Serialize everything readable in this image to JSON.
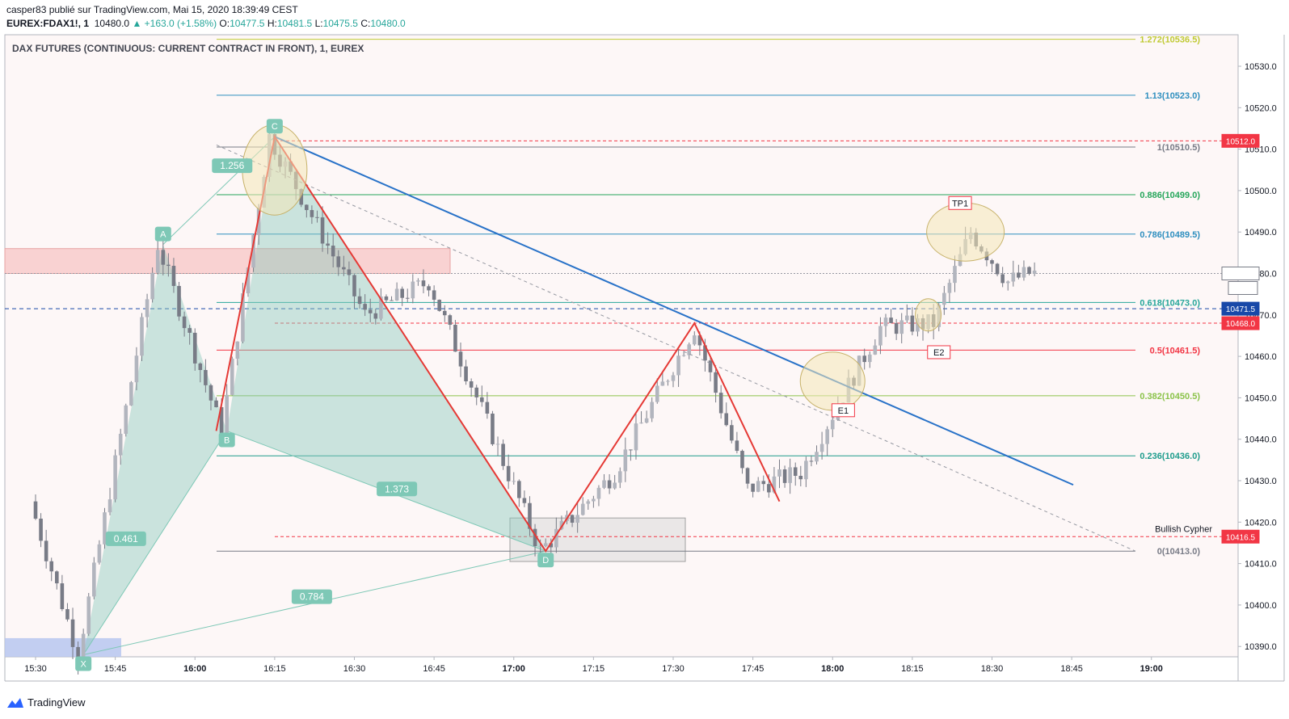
{
  "header": {
    "line1": "casper83 publié sur TradingView.com, Mai 15, 2020 18:39:49 CEST",
    "symbol": "EUREX:FDAX1!, 1",
    "last": "10480.0",
    "change": "+163.0 (+1.58%)",
    "o_label": "O:",
    "o_value": "10477.5",
    "h_label": "H:",
    "h_value": "10481.5",
    "l_label": "L:",
    "l_value": "10475.5",
    "c_label": "C:",
    "c_value": "10480.0"
  },
  "footer": {
    "brand": "TradingView"
  },
  "colors": {
    "up_text": "#26a69a",
    "candle": "#787b86",
    "harmonic_fill": "#8cc9bc",
    "harmonic_point": "#7ec8b6",
    "trendline": "#2872c8",
    "zigzag": "#e53935",
    "supply_zone": "#f7c6c6",
    "demand_zone": "#b7c7f0",
    "ellipse": "#f4e7b8",
    "price_tag_red": "#f23645",
    "price_tag_blue": "#1848a8"
  },
  "chart_data": {
    "type": "candlestick",
    "title": "DAX FUTURES (CONTINUOUS: CURRENT CONTRACT IN FRONT), 1, EUREX",
    "ylim": [
      10387,
      10538
    ],
    "y_ticks": [
      "10530.0",
      "10520.0",
      "10510.0",
      "10500.0",
      "10490.0",
      "10480.0",
      "10470.0",
      "10460.0",
      "10450.0",
      "10440.0",
      "10430.0",
      "10420.0",
      "10410.0",
      "10400.0",
      "10390.0"
    ],
    "x_ticks": [
      "15:30",
      "15:45",
      "16:00",
      "16:15",
      "16:30",
      "16:45",
      "17:00",
      "17:15",
      "17:30",
      "17:45",
      "18:00",
      "18:15",
      "18:30",
      "18:45",
      "19:00"
    ],
    "fib_levels": [
      {
        "level": 1.272,
        "price": 10536.5,
        "label": "1.272(10536.5)",
        "color": "#c0ca33"
      },
      {
        "level": 1.13,
        "price": 10523.0,
        "label": "1.13(10523.0)",
        "color": "#2f8fbf"
      },
      {
        "level": 1,
        "price": 10510.5,
        "label": "1(10510.5)",
        "color": "#787b86"
      },
      {
        "level": 0.886,
        "price": 10499.0,
        "label": "0.886(10499.0)",
        "color": "#26a65b"
      },
      {
        "level": 0.786,
        "price": 10489.5,
        "label": "0.786(10489.5)",
        "color": "#2f8fbf"
      },
      {
        "level": 0.618,
        "price": 10473.0,
        "label": "0.618(10473.0)",
        "color": "#26a69a"
      },
      {
        "level": 0.5,
        "price": 10461.5,
        "label": "0.5(10461.5)",
        "color": "#f23645"
      },
      {
        "level": 0.382,
        "price": 10450.5,
        "label": "0.382(10450.5)",
        "color": "#8bc34a"
      },
      {
        "level": 0.236,
        "price": 10436.0,
        "label": "0.236(10436.0)",
        "color": "#1e9c8c"
      },
      {
        "level": 0,
        "price": 10413.0,
        "label": "0(10413.0)",
        "color": "#787b86"
      }
    ],
    "price_tags": [
      {
        "price": 10512.0,
        "label": "10512.0",
        "kind": "red"
      },
      {
        "price": 10480.0,
        "label": "10480.0",
        "kind": "last"
      },
      {
        "price": 10471.5,
        "label": "10471.5",
        "kind": "blue"
      },
      {
        "price": 10468.0,
        "label": "10468.0",
        "kind": "red"
      },
      {
        "price": 10416.5,
        "label": "10416.5",
        "kind": "red"
      }
    ],
    "countdown": "00:15",
    "pattern_name": "Bullish Cypher",
    "pattern_points": [
      {
        "label": "X",
        "time": "15:39",
        "price": 10388
      },
      {
        "label": "A",
        "time": "15:54",
        "price": 10487
      },
      {
        "label": "B",
        "time": "16:06",
        "price": 10442
      },
      {
        "label": "C",
        "time": "16:15",
        "price": 10513
      },
      {
        "label": "D",
        "time": "17:06",
        "price": 10413
      }
    ],
    "ratios": [
      {
        "label": "0.461",
        "time": "15:47",
        "price": 10416
      },
      {
        "label": "1.256",
        "time": "16:07",
        "price": 10506
      },
      {
        "label": "1.373",
        "time": "16:38",
        "price": 10428
      },
      {
        "label": "0.784",
        "time": "16:22",
        "price": 10402
      }
    ],
    "annotations": [
      {
        "label": "TP1",
        "time": "18:24",
        "price": 10497
      },
      {
        "label": "E1",
        "time": "18:02",
        "price": 10447
      },
      {
        "label": "E2",
        "time": "18:20",
        "price": 10461
      }
    ],
    "candles": []
  }
}
